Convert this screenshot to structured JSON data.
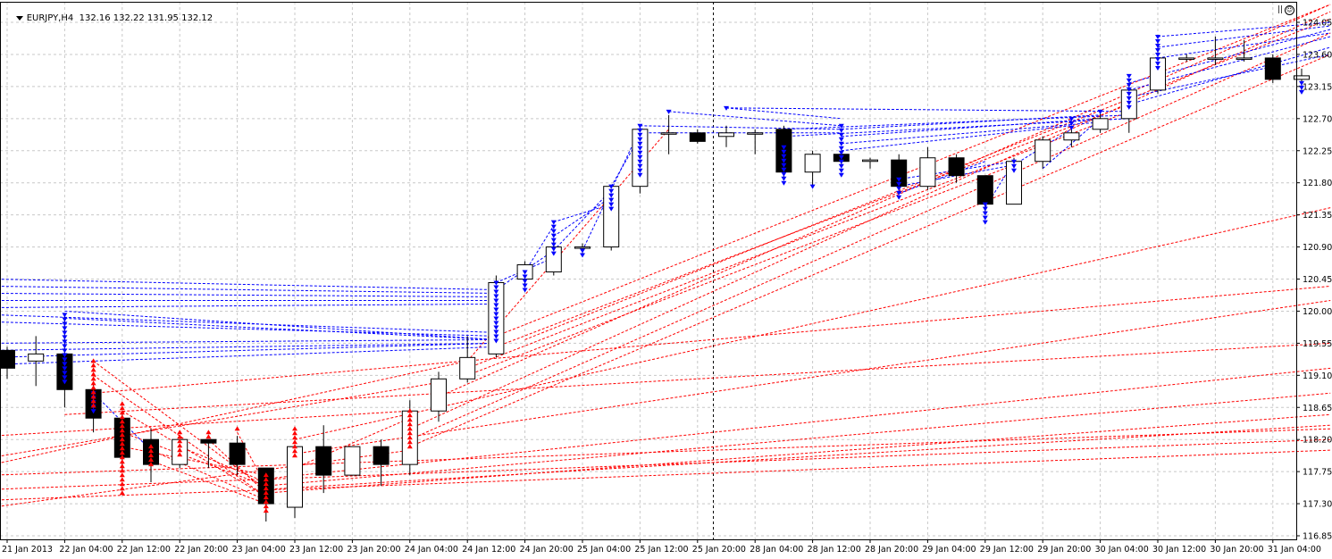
{
  "header": {
    "symbol_timeframe": "EURJPY,H4",
    "ohlc": "132.16 132.22 131.95 132.12",
    "ea_pause": "||",
    "ea_icon": "smiley-icon"
  },
  "colors": {
    "background": "#ffffff",
    "grid": "#c8c8c8",
    "axis": "#000000",
    "bull_body": "#ffffff",
    "bear_body": "#000000",
    "blue_arrows": "#0000ff",
    "red_arrows": "#ff0000",
    "blue_lines": "#0000ff",
    "red_lines": "#ff0000"
  },
  "chart_data": {
    "type": "candlestick",
    "symbol": "EURJPY",
    "timeframe": "H4",
    "ylim": [
      116.65,
      124.3
    ],
    "y_ticks": [
      "124.05",
      "123.60",
      "123.15",
      "122.70",
      "122.25",
      "121.80",
      "121.35",
      "120.90",
      "120.45",
      "120.00",
      "119.55",
      "119.10",
      "118.65",
      "118.20",
      "117.75",
      "117.30",
      "116.85"
    ],
    "x_ticks": [
      {
        "label": "21 Jan 2013",
        "bar": 0
      },
      {
        "label": "22 Jan 04:00",
        "bar": 2
      },
      {
        "label": "22 Jan 12:00",
        "bar": 4
      },
      {
        "label": "22 Jan 20:00",
        "bar": 6
      },
      {
        "label": "23 Jan 04:00",
        "bar": 8
      },
      {
        "label": "23 Jan 12:00",
        "bar": 10
      },
      {
        "label": "23 Jan 20:00",
        "bar": 12
      },
      {
        "label": "24 Jan 04:00",
        "bar": 14
      },
      {
        "label": "24 Jan 12:00",
        "bar": 16
      },
      {
        "label": "24 Jan 20:00",
        "bar": 18
      },
      {
        "label": "25 Jan 04:00",
        "bar": 20
      },
      {
        "label": "25 Jan 12:00",
        "bar": 22
      },
      {
        "label": "25 Jan 20:00",
        "bar": 24
      },
      {
        "label": "28 Jan 04:00",
        "bar": 26
      },
      {
        "label": "28 Jan 12:00",
        "bar": 28
      },
      {
        "label": "28 Jan 20:00",
        "bar": 30
      },
      {
        "label": "29 Jan 04:00",
        "bar": 32
      },
      {
        "label": "29 Jan 12:00",
        "bar": 34
      },
      {
        "label": "29 Jan 20:00",
        "bar": 36
      },
      {
        "label": "30 Jan 04:00",
        "bar": 38
      },
      {
        "label": "30 Jan 12:00",
        "bar": 40
      },
      {
        "label": "30 Jan 20:00",
        "bar": 42
      },
      {
        "label": "31 Jan 04:00",
        "bar": 44
      }
    ],
    "candles": [
      {
        "o": 119.45,
        "h": 119.5,
        "l": 119.05,
        "c": 119.2
      },
      {
        "o": 119.3,
        "h": 119.65,
        "l": 118.95,
        "c": 119.4
      },
      {
        "o": 119.4,
        "h": 119.95,
        "l": 118.65,
        "c": 118.9
      },
      {
        "o": 118.9,
        "h": 119.0,
        "l": 118.3,
        "c": 118.5
      },
      {
        "o": 118.5,
        "h": 118.6,
        "l": 117.75,
        "c": 117.95
      },
      {
        "o": 118.2,
        "h": 118.35,
        "l": 117.6,
        "c": 117.85
      },
      {
        "o": 117.85,
        "h": 118.2,
        "l": 117.8,
        "c": 118.2
      },
      {
        "o": 118.2,
        "h": 118.2,
        "l": 117.8,
        "c": 118.15
      },
      {
        "o": 118.15,
        "h": 118.25,
        "l": 117.7,
        "c": 117.85
      },
      {
        "o": 117.8,
        "h": 117.8,
        "l": 117.05,
        "c": 117.3
      },
      {
        "o": 117.25,
        "h": 118.1,
        "l": 117.1,
        "c": 118.1
      },
      {
        "o": 118.1,
        "h": 118.4,
        "l": 117.45,
        "c": 117.7
      },
      {
        "o": 117.7,
        "h": 118.1,
        "l": 117.7,
        "c": 118.1
      },
      {
        "o": 118.1,
        "h": 118.2,
        "l": 117.55,
        "c": 117.85
      },
      {
        "o": 117.85,
        "h": 118.75,
        "l": 117.7,
        "c": 118.6
      },
      {
        "o": 118.6,
        "h": 119.15,
        "l": 118.45,
        "c": 119.05
      },
      {
        "o": 119.05,
        "h": 119.65,
        "l": 119.0,
        "c": 119.35
      },
      {
        "o": 119.4,
        "h": 120.5,
        "l": 119.35,
        "c": 120.4
      },
      {
        "o": 120.45,
        "h": 120.7,
        "l": 120.35,
        "c": 120.65
      },
      {
        "o": 120.55,
        "h": 121.0,
        "l": 120.5,
        "c": 120.9
      },
      {
        "o": 120.9,
        "h": 120.95,
        "l": 120.8,
        "c": 120.9
      },
      {
        "o": 120.9,
        "h": 121.75,
        "l": 120.85,
        "c": 121.75
      },
      {
        "o": 121.75,
        "h": 122.6,
        "l": 121.65,
        "c": 122.55
      },
      {
        "o": 122.5,
        "h": 122.75,
        "l": 122.2,
        "c": 122.5
      },
      {
        "o": 122.5,
        "h": 122.55,
        "l": 122.35,
        "c": 122.38
      },
      {
        "o": 122.45,
        "h": 122.6,
        "l": 122.3,
        "c": 122.5
      },
      {
        "o": 122.5,
        "h": 122.55,
        "l": 122.2,
        "c": 122.5
      },
      {
        "o": 122.55,
        "h": 122.6,
        "l": 121.85,
        "c": 121.95
      },
      {
        "o": 121.95,
        "h": 122.25,
        "l": 121.75,
        "c": 122.2
      },
      {
        "o": 122.2,
        "h": 122.25,
        "l": 122.05,
        "c": 122.1
      },
      {
        "o": 122.1,
        "h": 122.15,
        "l": 122.0,
        "c": 122.12
      },
      {
        "o": 122.12,
        "h": 122.2,
        "l": 121.7,
        "c": 121.75
      },
      {
        "o": 121.75,
        "h": 122.3,
        "l": 121.7,
        "c": 122.15
      },
      {
        "o": 122.15,
        "h": 122.2,
        "l": 121.8,
        "c": 121.9
      },
      {
        "o": 121.9,
        "h": 121.9,
        "l": 121.35,
        "c": 121.5
      },
      {
        "o": 121.5,
        "h": 122.15,
        "l": 121.5,
        "c": 122.1
      },
      {
        "o": 122.1,
        "h": 122.45,
        "l": 122.0,
        "c": 122.4
      },
      {
        "o": 122.4,
        "h": 122.55,
        "l": 122.3,
        "c": 122.5
      },
      {
        "o": 122.55,
        "h": 122.8,
        "l": 122.5,
        "c": 122.7
      },
      {
        "o": 122.7,
        "h": 123.2,
        "l": 122.5,
        "c": 123.1
      },
      {
        "o": 123.1,
        "h": 123.8,
        "l": 123.05,
        "c": 123.55
      },
      {
        "o": 123.55,
        "h": 123.6,
        "l": 123.5,
        "c": 123.55
      },
      {
        "o": 123.55,
        "h": 123.85,
        "l": 123.45,
        "c": 123.55
      },
      {
        "o": 123.55,
        "h": 123.8,
        "l": 123.5,
        "c": 123.55
      },
      {
        "o": 123.55,
        "h": 123.6,
        "l": 123.2,
        "c": 123.25
      },
      {
        "o": 123.25,
        "h": 123.4,
        "l": 123.1,
        "c": 123.3
      }
    ],
    "blue_arrows": [
      {
        "bar": 2,
        "from": 119.0,
        "to": 119.95
      },
      {
        "bar": 3,
        "from": 118.6,
        "to": 118.85
      },
      {
        "bar": 17,
        "from": 119.55,
        "to": 120.4
      },
      {
        "bar": 18,
        "from": 120.25,
        "to": 120.55
      },
      {
        "bar": 19,
        "from": 120.8,
        "to": 121.25
      },
      {
        "bar": 20,
        "from": 120.75,
        "to": 120.85
      },
      {
        "bar": 21,
        "from": 121.4,
        "to": 121.75
      },
      {
        "bar": 22,
        "from": 121.85,
        "to": 122.6
      },
      {
        "bar": 23,
        "from": 122.75,
        "to": 122.8
      },
      {
        "bar": 25,
        "from": 122.8,
        "to": 122.85
      },
      {
        "bar": 27,
        "from": 121.75,
        "to": 122.3
      },
      {
        "bar": 28,
        "from": 121.7,
        "to": 121.75
      },
      {
        "bar": 29,
        "from": 121.9,
        "to": 122.6
      },
      {
        "bar": 31,
        "from": 121.55,
        "to": 121.85
      },
      {
        "bar": 34,
        "from": 121.25,
        "to": 121.5
      },
      {
        "bar": 35,
        "from": 121.95,
        "to": 122.1
      },
      {
        "bar": 37,
        "from": 122.55,
        "to": 122.7
      },
      {
        "bar": 38,
        "from": 122.75,
        "to": 122.8
      },
      {
        "bar": 39,
        "from": 122.85,
        "to": 123.3
      },
      {
        "bar": 40,
        "from": 123.4,
        "to": 123.85
      },
      {
        "bar": 45,
        "from": 123.05,
        "to": 123.2
      }
    ],
    "red_arrows": [
      {
        "bar": 3,
        "from": 118.65,
        "to": 119.3
      },
      {
        "bar": 4,
        "from": 117.4,
        "to": 118.7
      },
      {
        "bar": 5,
        "from": 117.85,
        "to": 118.1
      },
      {
        "bar": 6,
        "from": 117.95,
        "to": 118.3
      },
      {
        "bar": 7,
        "from": 118.2,
        "to": 118.3
      },
      {
        "bar": 8,
        "from": 118.3,
        "to": 118.35
      },
      {
        "bar": 9,
        "from": 117.2,
        "to": 117.7
      },
      {
        "bar": 10,
        "from": 117.95,
        "to": 118.35
      },
      {
        "bar": 14,
        "from": 118.05,
        "to": 118.6
      }
    ],
    "dashed_lines_blue": [
      {
        "x1": -0.5,
        "y1": 120.45,
        "x2": 17.0,
        "y2": 120.3
      },
      {
        "x1": -0.5,
        "y1": 120.35,
        "x2": 17.0,
        "y2": 120.25
      },
      {
        "x1": -0.5,
        "y1": 120.25,
        "x2": 17.0,
        "y2": 120.2
      },
      {
        "x1": -0.5,
        "y1": 120.15,
        "x2": 17.0,
        "y2": 120.15
      },
      {
        "x1": -0.5,
        "y1": 120.05,
        "x2": 17.0,
        "y2": 120.1
      },
      {
        "x1": -0.5,
        "y1": 119.95,
        "x2": 17.0,
        "y2": 119.7
      },
      {
        "x1": -0.5,
        "y1": 119.85,
        "x2": 17.0,
        "y2": 119.65
      },
      {
        "x1": 2.0,
        "y1": 120.0,
        "x2": 17.0,
        "y2": 119.6
      },
      {
        "x1": 2.0,
        "y1": 119.9,
        "x2": 17.0,
        "y2": 119.6
      },
      {
        "x1": -0.5,
        "y1": 119.55,
        "x2": 17.0,
        "y2": 119.6
      },
      {
        "x1": -0.5,
        "y1": 119.45,
        "x2": 17.0,
        "y2": 119.55
      },
      {
        "x1": -0.5,
        "y1": 119.35,
        "x2": 17.0,
        "y2": 119.55
      },
      {
        "x1": -0.5,
        "y1": 119.25,
        "x2": 17.0,
        "y2": 119.5
      },
      {
        "x1": 3.0,
        "y1": 118.85,
        "x2": 5.0,
        "y2": 118.05
      },
      {
        "x1": 17.0,
        "y1": 120.4,
        "x2": 19.0,
        "y2": 120.75
      },
      {
        "x1": 17.0,
        "y1": 120.3,
        "x2": 19.0,
        "y2": 120.85
      },
      {
        "x1": 18.0,
        "y1": 120.55,
        "x2": 19.0,
        "y2": 121.2
      },
      {
        "x1": 19.0,
        "y1": 120.85,
        "x2": 21.0,
        "y2": 121.7
      },
      {
        "x1": 19.0,
        "y1": 121.05,
        "x2": 21.0,
        "y2": 121.6
      },
      {
        "x1": 19.0,
        "y1": 121.25,
        "x2": 21.0,
        "y2": 121.5
      },
      {
        "x1": 20.0,
        "y1": 120.85,
        "x2": 22.0,
        "y2": 122.55
      },
      {
        "x1": 21.0,
        "y1": 121.75,
        "x2": 22.0,
        "y2": 122.45
      },
      {
        "x1": 22.0,
        "y1": 122.6,
        "x2": 29.0,
        "y2": 122.55
      },
      {
        "x1": 22.0,
        "y1": 122.5,
        "x2": 29.0,
        "y2": 122.5
      },
      {
        "x1": 23.0,
        "y1": 122.8,
        "x2": 29.0,
        "y2": 122.6
      },
      {
        "x1": 25.0,
        "y1": 122.85,
        "x2": 29.0,
        "y2": 122.7
      },
      {
        "x1": 25.0,
        "y1": 122.85,
        "x2": 39.0,
        "y2": 122.8
      },
      {
        "x1": 27.0,
        "y1": 122.55,
        "x2": 39.0,
        "y2": 122.75
      },
      {
        "x1": 27.0,
        "y1": 122.45,
        "x2": 39.0,
        "y2": 122.7
      },
      {
        "x1": 29.0,
        "y1": 122.55,
        "x2": 38.0,
        "y2": 122.75
      },
      {
        "x1": 29.0,
        "y1": 122.45,
        "x2": 38.0,
        "y2": 122.7
      },
      {
        "x1": 29.0,
        "y1": 122.35,
        "x2": 38.0,
        "y2": 122.65
      },
      {
        "x1": 29.0,
        "y1": 122.25,
        "x2": 37.0,
        "y2": 122.6
      },
      {
        "x1": 31.0,
        "y1": 121.85,
        "x2": 35.0,
        "y2": 122.1
      },
      {
        "x1": 31.0,
        "y1": 121.75,
        "x2": 35.0,
        "y2": 122.05
      },
      {
        "x1": 31.0,
        "y1": 121.65,
        "x2": 34.0,
        "y2": 122.1
      },
      {
        "x1": 34.0,
        "y1": 121.45,
        "x2": 35.0,
        "y2": 122.1
      },
      {
        "x1": 35.0,
        "y1": 122.05,
        "x2": 37.0,
        "y2": 122.55
      },
      {
        "x1": 36.0,
        "y1": 122.0,
        "x2": 38.0,
        "y2": 122.7
      },
      {
        "x1": 39.0,
        "y1": 123.2,
        "x2": 46.0,
        "y2": 123.95
      },
      {
        "x1": 39.0,
        "y1": 123.1,
        "x2": 46.0,
        "y2": 123.85
      },
      {
        "x1": 40.0,
        "y1": 123.85,
        "x2": 46.0,
        "y2": 124.05
      },
      {
        "x1": 40.0,
        "y1": 123.7,
        "x2": 46.0,
        "y2": 124.0
      },
      {
        "x1": 40.0,
        "y1": 123.55,
        "x2": 46.0,
        "y2": 123.9
      },
      {
        "x1": 39.0,
        "y1": 123.0,
        "x2": 46.0,
        "y2": 123.6
      },
      {
        "x1": 39.0,
        "y1": 122.9,
        "x2": 46.0,
        "y2": 123.7
      }
    ],
    "dashed_lines_red": [
      {
        "x1": -0.5,
        "y1": 118.25,
        "x2": 14.0,
        "y2": 118.6
      },
      {
        "x1": -0.5,
        "y1": 117.95,
        "x2": 15.0,
        "y2": 119.0
      },
      {
        "x1": -0.5,
        "y1": 117.85,
        "x2": 16.0,
        "y2": 119.3
      },
      {
        "x1": -0.5,
        "y1": 117.7,
        "x2": 46.0,
        "y2": 118.35
      },
      {
        "x1": -0.5,
        "y1": 117.5,
        "x2": 46.0,
        "y2": 118.2
      },
      {
        "x1": -0.5,
        "y1": 117.35,
        "x2": 46.0,
        "y2": 118.05
      },
      {
        "x1": -0.5,
        "y1": 117.25,
        "x2": 14.0,
        "y2": 118.05
      },
      {
        "x1": 3.0,
        "y1": 119.3,
        "x2": 9.0,
        "y2": 117.5
      },
      {
        "x1": 3.0,
        "y1": 119.1,
        "x2": 9.0,
        "y2": 117.4
      },
      {
        "x1": 4.0,
        "y1": 118.6,
        "x2": 9.0,
        "y2": 117.4
      },
      {
        "x1": 4.0,
        "y1": 118.3,
        "x2": 9.0,
        "y2": 117.55
      },
      {
        "x1": 4.0,
        "y1": 118.1,
        "x2": 9.0,
        "y2": 117.7
      },
      {
        "x1": 5.0,
        "y1": 118.05,
        "x2": 9.0,
        "y2": 117.35
      },
      {
        "x1": 5.0,
        "y1": 117.9,
        "x2": 9.0,
        "y2": 117.3
      },
      {
        "x1": 6.0,
        "y1": 118.1,
        "x2": 9.0,
        "y2": 117.6
      },
      {
        "x1": 7.0,
        "y1": 118.2,
        "x2": 9.0,
        "y2": 117.45
      },
      {
        "x1": 8.0,
        "y1": 118.3,
        "x2": 9.0,
        "y2": 117.55
      },
      {
        "x1": 9.0,
        "y1": 117.45,
        "x2": 46.0,
        "y2": 118.55
      },
      {
        "x1": 9.0,
        "y1": 117.55,
        "x2": 46.0,
        "y2": 118.85
      },
      {
        "x1": 9.0,
        "y1": 117.65,
        "x2": 46.0,
        "y2": 119.2
      },
      {
        "x1": 9.0,
        "y1": 117.5,
        "x2": 46.0,
        "y2": 118.4
      },
      {
        "x1": 10.0,
        "y1": 118.0,
        "x2": 46.0,
        "y2": 120.15
      },
      {
        "x1": 10.0,
        "y1": 118.2,
        "x2": 46.0,
        "y2": 121.45
      },
      {
        "x1": 10.0,
        "y1": 117.8,
        "x2": 14.0,
        "y2": 118.5
      },
      {
        "x1": 14.0,
        "y1": 118.35,
        "x2": 46.0,
        "y2": 124.2
      },
      {
        "x1": 14.0,
        "y1": 118.2,
        "x2": 46.0,
        "y2": 123.9
      },
      {
        "x1": 14.0,
        "y1": 118.1,
        "x2": 46.0,
        "y2": 123.6
      },
      {
        "x1": 15.0,
        "y1": 118.8,
        "x2": 46.0,
        "y2": 124.3
      },
      {
        "x1": 16.0,
        "y1": 119.2,
        "x2": 39.0,
        "y2": 122.8
      },
      {
        "x1": 16.0,
        "y1": 119.3,
        "x2": 23.0,
        "y2": 122.55
      },
      {
        "x1": 16.0,
        "y1": 119.1,
        "x2": 35.0,
        "y2": 122.05
      },
      {
        "x1": 17.0,
        "y1": 119.5,
        "x2": 39.0,
        "y2": 122.9
      },
      {
        "x1": 17.0,
        "y1": 119.65,
        "x2": 46.0,
        "y2": 124.3
      },
      {
        "x1": 18.0,
        "y1": 119.6,
        "x2": 46.0,
        "y2": 124.1
      },
      {
        "x1": 3.0,
        "y1": 118.85,
        "x2": 46.0,
        "y2": 120.35
      },
      {
        "x1": 2.0,
        "y1": 118.55,
        "x2": 46.0,
        "y2": 119.55
      }
    ],
    "vertical_marker": {
      "bar": 24.55
    },
    "title": "EURJPY,H4"
  }
}
